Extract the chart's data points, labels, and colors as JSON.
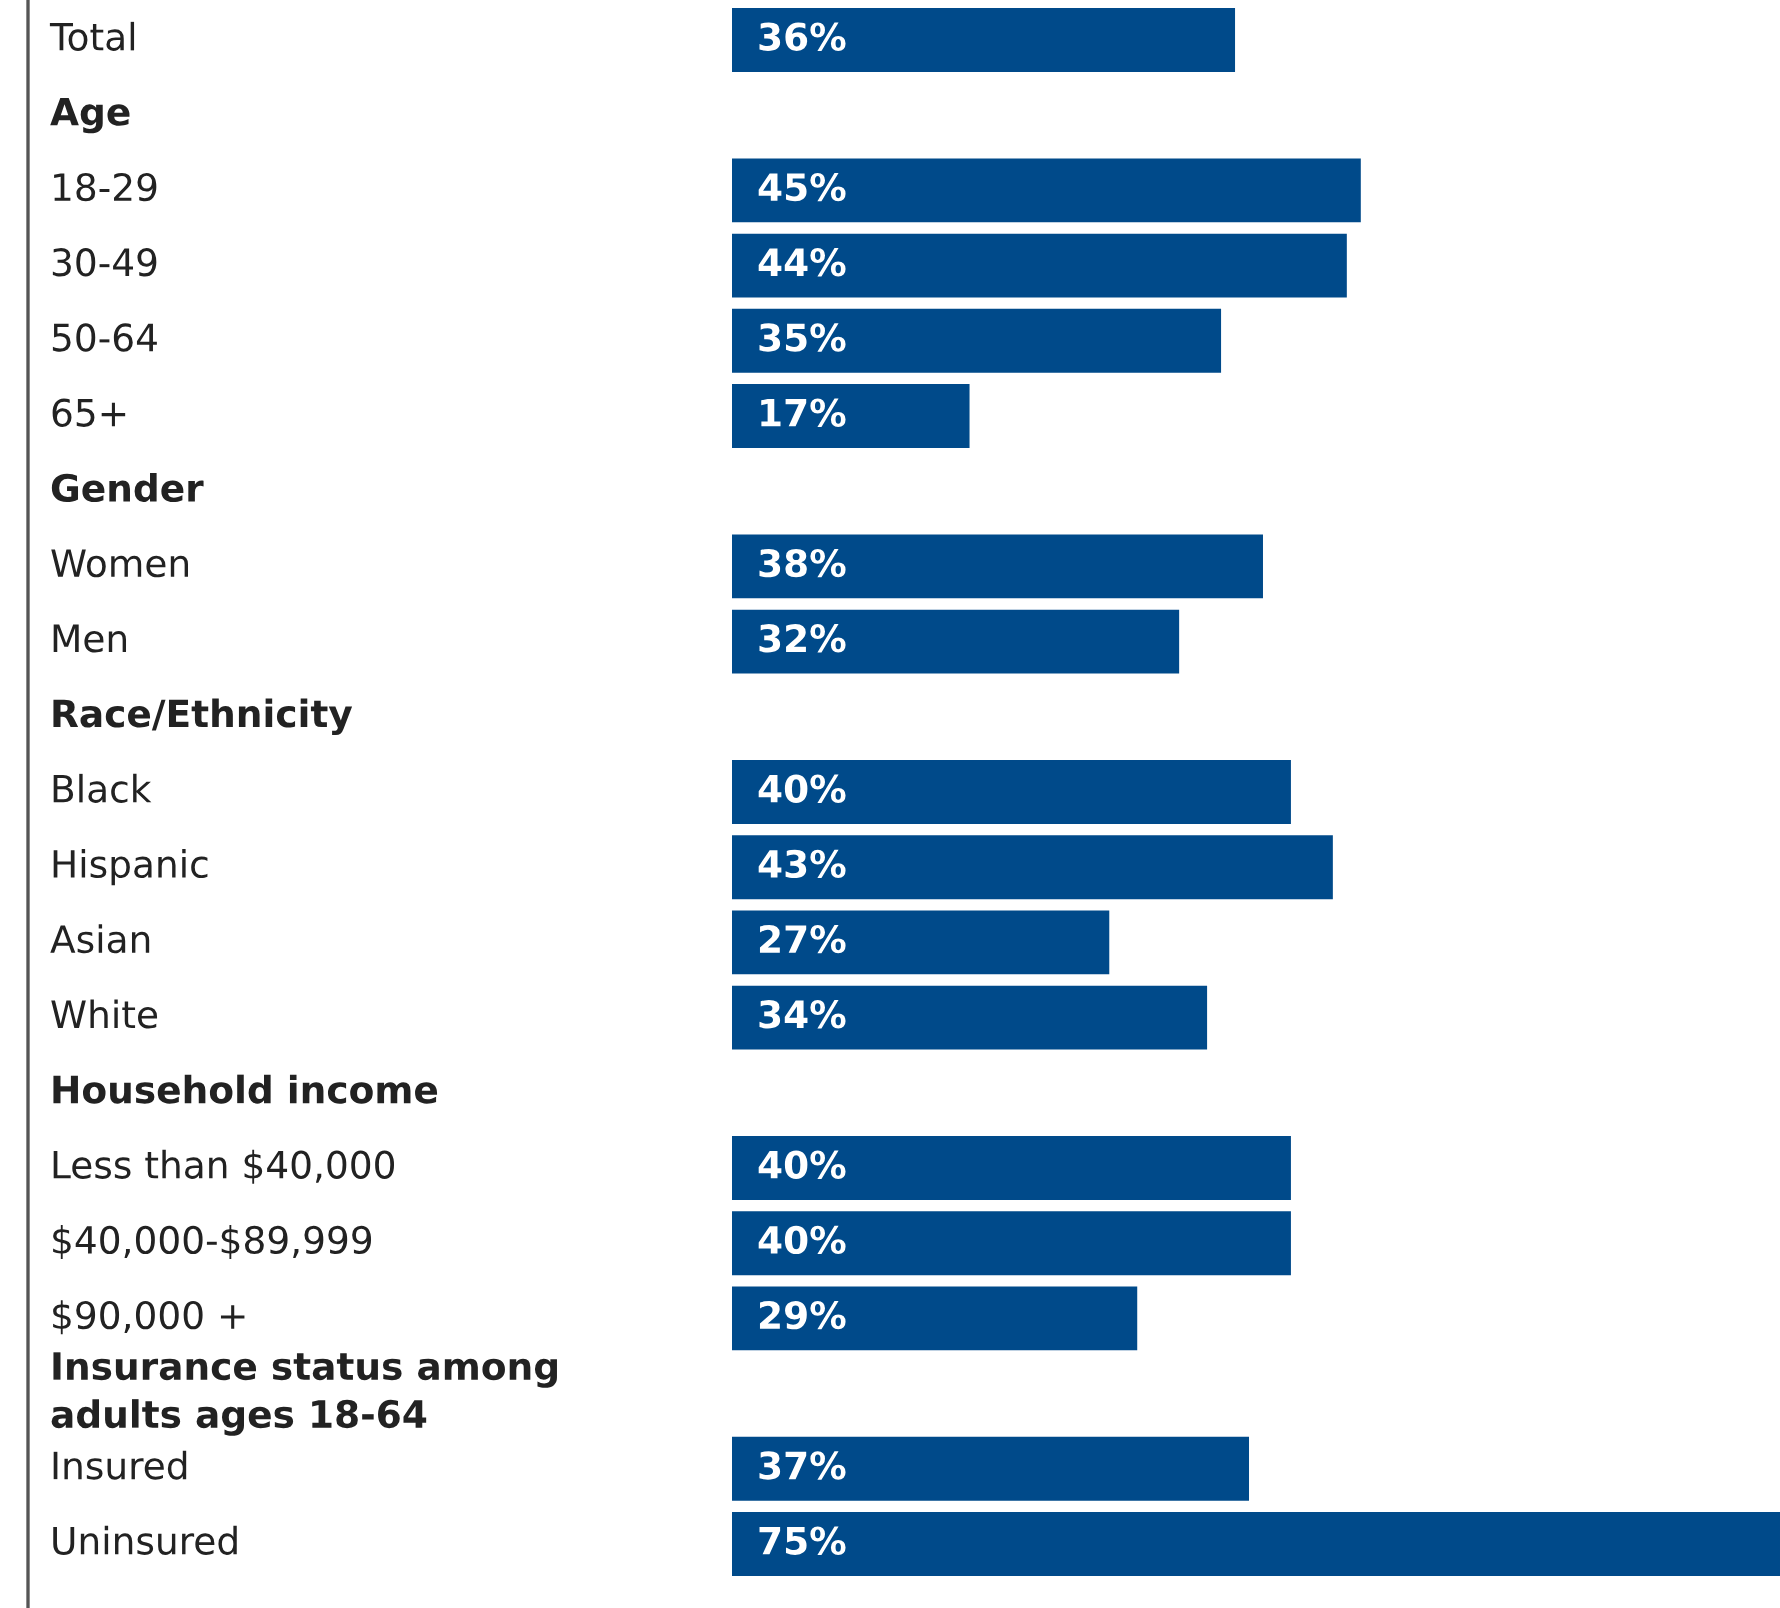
{
  "chart_data": {
    "type": "bar",
    "orientation": "horizontal",
    "relative": false,
    "categories": [
      "Total",
      "Age",
      "18-29",
      "30-49",
      "50-64",
      "65+",
      "Gender",
      "Women",
      "Men",
      "Race/Ethnicity",
      "Black",
      "Hispanic",
      "Asian",
      "White",
      "Household income",
      "Less than $40,000",
      "$40,000-$89,999",
      "$90,000 +",
      "Insurance status among\nadults ages 18-64",
      "Insured",
      "Uninsured"
    ],
    "values": [
      36,
      null,
      45,
      44,
      35,
      17,
      null,
      38,
      32,
      null,
      40,
      43,
      27,
      34,
      null,
      40,
      40,
      29,
      null,
      37,
      75
    ],
    "value_labels": [
      "36%",
      null,
      "45%",
      "44%",
      "35%",
      "17%",
      null,
      "38%",
      "32%",
      null,
      "40%",
      "43%",
      "27%",
      "34%",
      null,
      "40%",
      "40%",
      "29%",
      null,
      "37%",
      "75%"
    ],
    "color": "#004a8a"
  }
}
